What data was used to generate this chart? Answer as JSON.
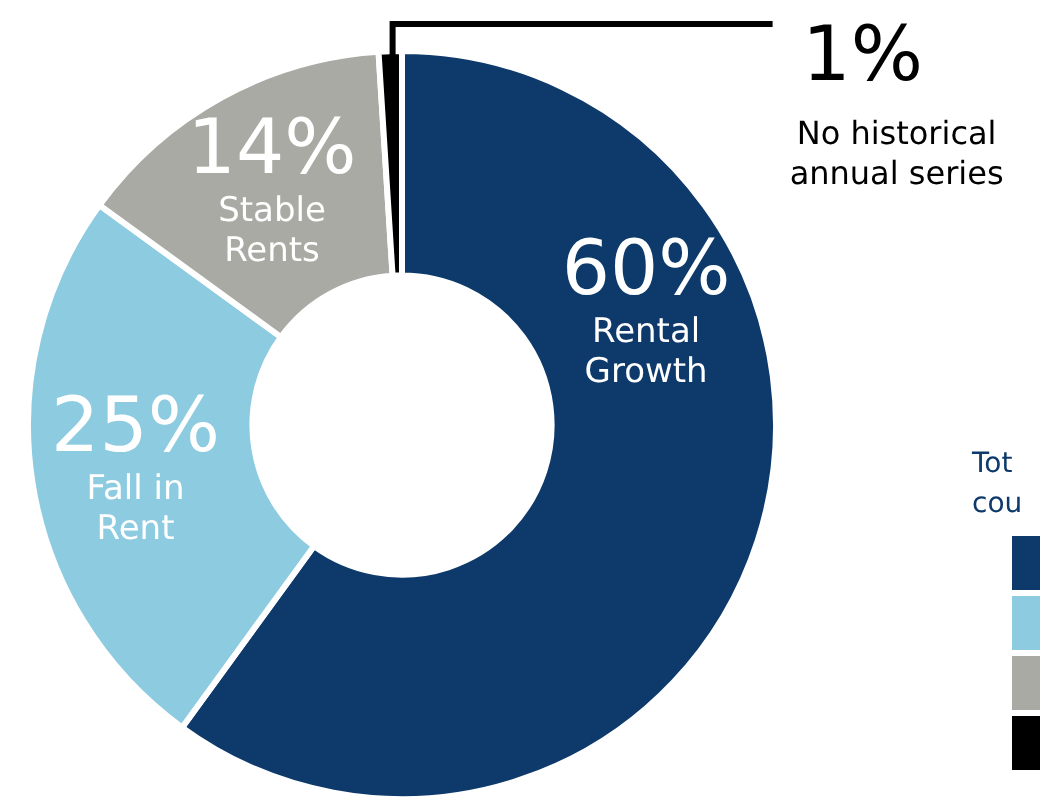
{
  "chart_data": {
    "type": "donut",
    "categories": [
      "Rental Growth",
      "Fall in Rent",
      "Stable Rents",
      "No historical annual series"
    ],
    "values": [
      60,
      25,
      14,
      1
    ],
    "colors": [
      "#0d3a6b",
      "#8ccbe0",
      "#a9aaa3",
      "#000000"
    ],
    "value_labels": [
      "60%",
      "25%",
      "14%",
      "1%"
    ],
    "legend_title": "Tot\ncou"
  }
}
